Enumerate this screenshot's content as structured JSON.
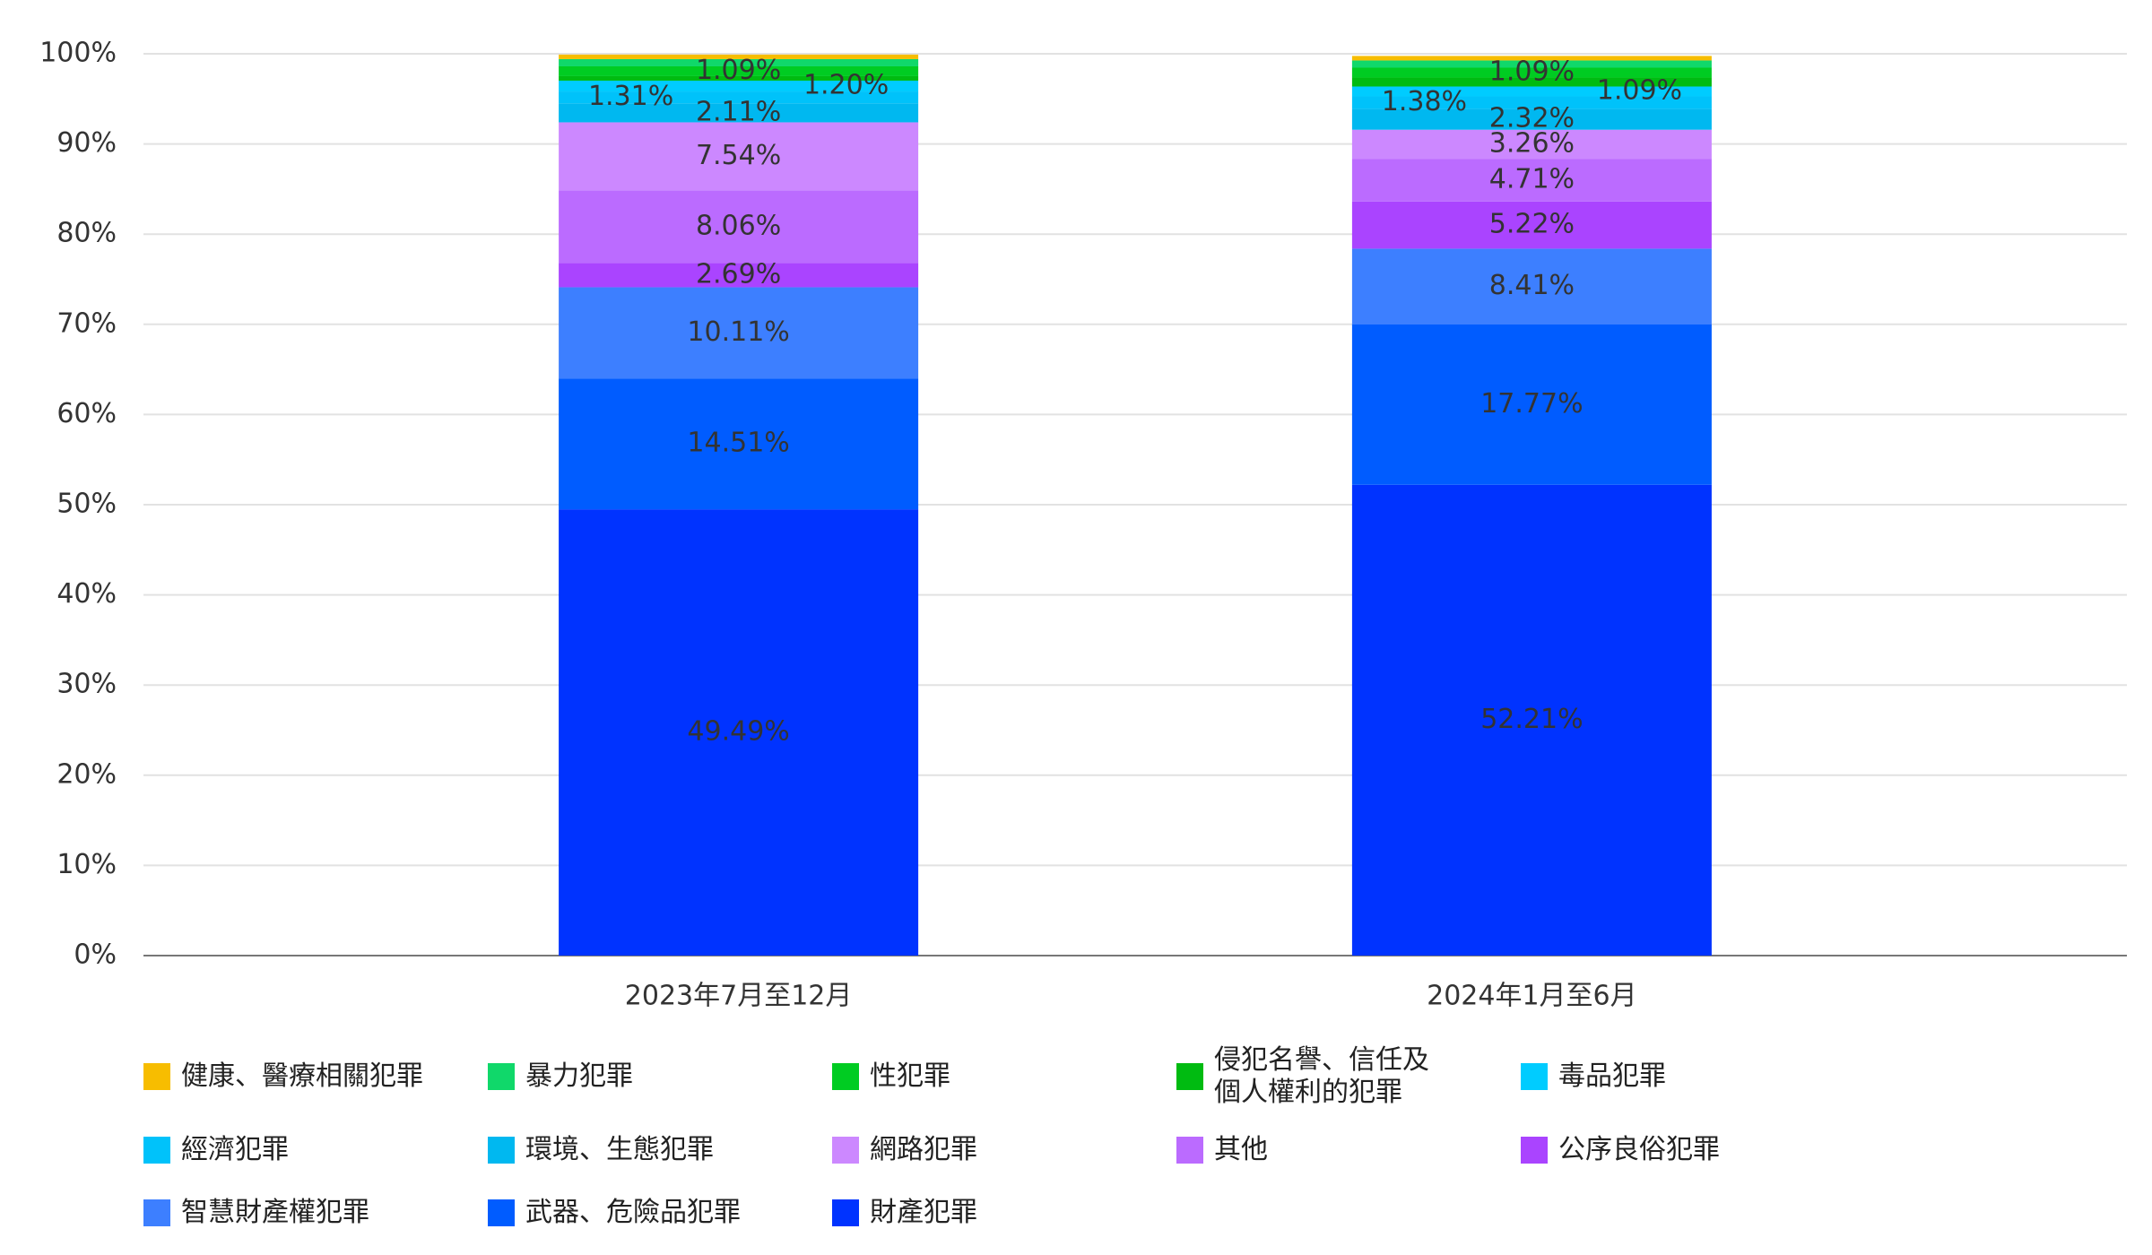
{
  "chart_data": {
    "type": "stacked_bar",
    "categories": [
      "2023年7月至12月",
      "2024年1月至6月"
    ],
    "ylim": [
      0,
      100
    ],
    "yticks": [
      {
        "value": 0,
        "label": "0%"
      },
      {
        "value": 10,
        "label": "10%"
      },
      {
        "value": 20,
        "label": "20%"
      },
      {
        "value": 30,
        "label": "30%"
      },
      {
        "value": 40,
        "label": "40%"
      },
      {
        "value": 50,
        "label": "50%"
      },
      {
        "value": 60,
        "label": "60%"
      },
      {
        "value": 70,
        "label": "70%"
      },
      {
        "value": 80,
        "label": "80%"
      },
      {
        "value": 90,
        "label": "90%"
      },
      {
        "value": 100,
        "label": "100%"
      }
    ],
    "grid": true,
    "series": [
      {
        "name": "健康、醫療相關犯罪",
        "color": "#f7bd00",
        "values": [
          0.5,
          0.5
        ],
        "value_labels": [
          null,
          null
        ]
      },
      {
        "name": "暴力犯罪",
        "color": "#10d86a",
        "values": [
          0.8,
          0.8
        ],
        "value_labels": [
          null,
          null
        ]
      },
      {
        "name": "性犯罪",
        "color": "#00cc22",
        "values": [
          1.09,
          1.09
        ],
        "value_labels": [
          "1.09%",
          "1.09%"
        ]
      },
      {
        "name": "侵犯名譽、信任及個人權利的犯罪",
        "color": "#00bb11",
        "values": [
          0.5,
          1.0
        ],
        "value_labels": [
          null,
          null
        ]
      },
      {
        "name": "毒品犯罪",
        "color": "#00ccff",
        "values": [
          1.2,
          1.09
        ],
        "value_labels": [
          "1.20%",
          "1.09%"
        ]
      },
      {
        "name": "經濟犯罪",
        "color": "#00c2fa",
        "values": [
          1.31,
          1.38
        ],
        "value_labels": [
          "1.31%",
          "1.38%"
        ]
      },
      {
        "name": "環境、生態犯罪",
        "color": "#00b8f0",
        "values": [
          2.11,
          2.32
        ],
        "value_labels": [
          "2.11%",
          "2.32%"
        ]
      },
      {
        "name": "網路犯罪",
        "color": "#cc88ff",
        "values": [
          7.54,
          3.26
        ],
        "value_labels": [
          "7.54%",
          "3.26%"
        ]
      },
      {
        "name": "其他",
        "color": "#bb6bff",
        "values": [
          8.06,
          4.71
        ],
        "value_labels": [
          "8.06%",
          "4.71%"
        ]
      },
      {
        "name": "公序良俗犯罪",
        "color": "#aa44ff",
        "values": [
          2.69,
          5.22
        ],
        "value_labels": [
          "2.69%",
          "5.22%"
        ]
      },
      {
        "name": "智慧財產權犯罪",
        "color": "#3d7fff",
        "values": [
          10.11,
          8.41
        ],
        "value_labels": [
          "10.11%",
          "8.41%"
        ]
      },
      {
        "name": "武器、危險品犯罪",
        "color": "#005cff",
        "values": [
          14.51,
          17.77
        ],
        "value_labels": [
          "14.51%",
          "17.77%"
        ]
      },
      {
        "name": "財產犯罪",
        "color": "#0033ff",
        "values": [
          49.49,
          52.21
        ],
        "value_labels": [
          "49.49%",
          "52.21%"
        ]
      }
    ]
  }
}
